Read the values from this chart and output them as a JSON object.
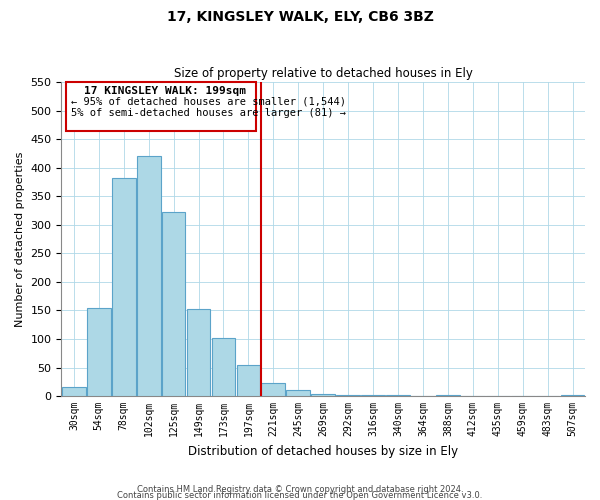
{
  "title": "17, KINGSLEY WALK, ELY, CB6 3BZ",
  "subtitle": "Size of property relative to detached houses in Ely",
  "xlabel": "Distribution of detached houses by size in Ely",
  "ylabel": "Number of detached properties",
  "bin_labels": [
    "30sqm",
    "54sqm",
    "78sqm",
    "102sqm",
    "125sqm",
    "149sqm",
    "173sqm",
    "197sqm",
    "221sqm",
    "245sqm",
    "269sqm",
    "292sqm",
    "316sqm",
    "340sqm",
    "364sqm",
    "388sqm",
    "412sqm",
    "435sqm",
    "459sqm",
    "483sqm",
    "507sqm"
  ],
  "bar_values": [
    15,
    155,
    382,
    420,
    322,
    153,
    101,
    55,
    22,
    10,
    4,
    2,
    1,
    1,
    0,
    1,
    0,
    0,
    0,
    0,
    1
  ],
  "bar_color": "#add8e6",
  "bar_edge_color": "#5ba3c9",
  "vline_x": 7.5,
  "vline_color": "#cc0000",
  "ylim": [
    0,
    550
  ],
  "yticks": [
    0,
    50,
    100,
    150,
    200,
    250,
    300,
    350,
    400,
    450,
    500,
    550
  ],
  "annotation_title": "17 KINGSLEY WALK: 199sqm",
  "annotation_line1": "← 95% of detached houses are smaller (1,544)",
  "annotation_line2": "5% of semi-detached houses are larger (81) →",
  "footer_line1": "Contains HM Land Registry data © Crown copyright and database right 2024.",
  "footer_line2": "Contains public sector information licensed under the Open Government Licence v3.0."
}
